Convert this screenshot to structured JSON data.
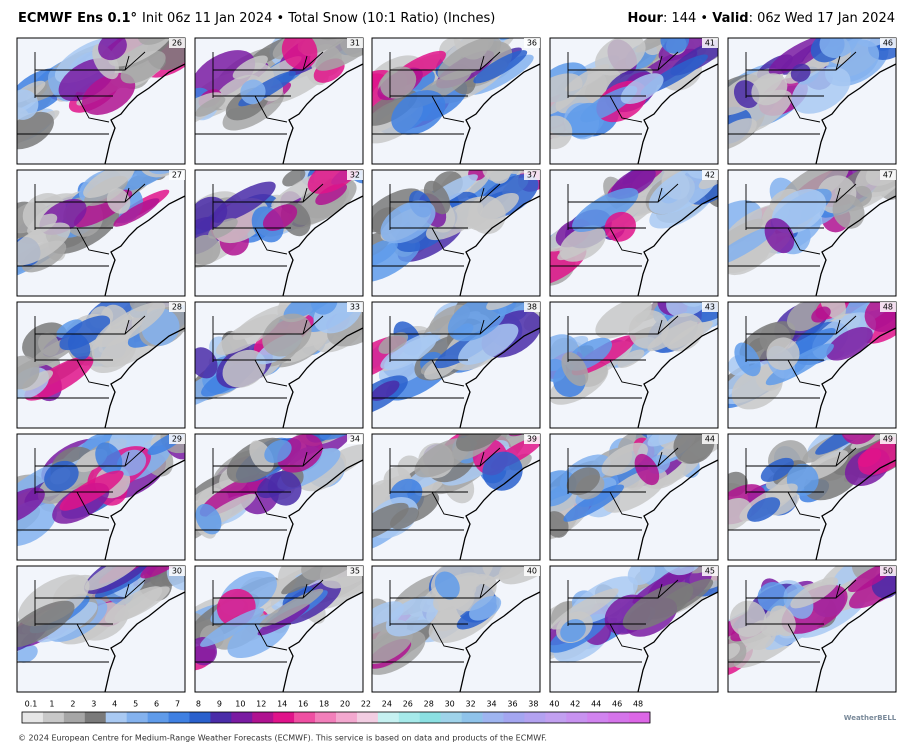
{
  "header": {
    "model": "ECMWF Ens 0.1°",
    "product": "Init 06z 11 Jan 2024 • Total Snow (10:1 Ratio) (Inches)",
    "hour_label": "Hour",
    "hour": ": 144 • ",
    "valid_label": "Valid",
    "valid": ": 06z Wed 17 Jan 2024"
  },
  "panels": [
    {
      "member": "26"
    },
    {
      "member": "31"
    },
    {
      "member": "36"
    },
    {
      "member": "41"
    },
    {
      "member": "46"
    },
    {
      "member": "27"
    },
    {
      "member": "32"
    },
    {
      "member": "37"
    },
    {
      "member": "42"
    },
    {
      "member": "47"
    },
    {
      "member": "28"
    },
    {
      "member": "33"
    },
    {
      "member": "38"
    },
    {
      "member": "43"
    },
    {
      "member": "48"
    },
    {
      "member": "29"
    },
    {
      "member": "34"
    },
    {
      "member": "39"
    },
    {
      "member": "44"
    },
    {
      "member": "49"
    },
    {
      "member": "30"
    },
    {
      "member": "35"
    },
    {
      "member": "40"
    },
    {
      "member": "45"
    },
    {
      "member": "50"
    }
  ],
  "colorbar": {
    "labels": [
      0.1,
      1,
      2,
      3,
      4,
      5,
      6,
      7,
      8,
      9,
      10,
      12,
      14,
      16,
      18,
      20,
      22,
      24,
      26,
      28,
      30,
      32,
      34,
      36,
      38,
      40,
      42,
      44,
      46,
      48
    ],
    "colors": [
      "#e6e6e6",
      "#c8c8c8",
      "#a6a6a6",
      "#7a7a7a",
      "#a9c9f2",
      "#84b2ee",
      "#5f9bea",
      "#3f80e2",
      "#2a60cc",
      "#4a2ca8",
      "#7a1ba2",
      "#b01290",
      "#e0138a",
      "#ef4fa2",
      "#f27fba",
      "#f3a8cf",
      "#f2cde2",
      "#c6f1f1",
      "#a6eaea",
      "#8be0e2",
      "#9fd3ea",
      "#8fc3ea",
      "#9fb5f0",
      "#a4a6f0",
      "#b3a2f0",
      "#c2a0f0",
      "#c892f0",
      "#d183ef",
      "#d574ea",
      "#dc66e6"
    ]
  },
  "footer": {
    "credit": "© 2024 European Centre for Medium-Range Weather Forecasts (ECMWF). This service is based on data and products of the ECMWF.",
    "logo": "WeatherBELL"
  }
}
